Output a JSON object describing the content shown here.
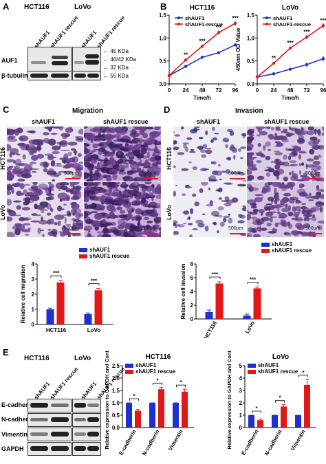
{
  "panels": {
    "A": {
      "letter": "A",
      "cell_lines": [
        "HCT116",
        "LoVo"
      ],
      "lanes": [
        "shAUF1",
        "shAUF1 rescue",
        "shAUF1",
        "shAUF1 rescue"
      ],
      "rows": [
        "AUF1",
        "β-tubulin"
      ],
      "markers": [
        "45 KDa",
        "40/42 KDa",
        "37 KDa",
        "55 KDa"
      ]
    },
    "B": {
      "letter": "B",
      "charts": [
        {
          "title": "HCT116",
          "ylabel": "450nm OD Value",
          "xlabel": "Time/h",
          "legend": [
            "shAUF1",
            "shAUF1-rescue"
          ],
          "sig": [
            "**",
            "***",
            "***",
            "***"
          ]
        },
        {
          "title": "LoVo",
          "ylabel": "450nm OD Value",
          "xlabel": "Time/h",
          "legend": [
            "shAUF1",
            "shAUF1-rescue"
          ],
          "sig": [
            "**",
            "***",
            "***",
            "***"
          ]
        }
      ]
    },
    "C": {
      "letter": "C",
      "title": "Migration",
      "cols": [
        "shAUF1",
        "shAUF1 rescue"
      ],
      "rows": [
        "HCT116",
        "LoVo"
      ],
      "scale": "500μm",
      "legend": [
        "shAUF1",
        "shAUF1 rescue"
      ],
      "ylabel": "Relative cell migration",
      "sig": [
        "***",
        "***"
      ]
    },
    "D": {
      "letter": "D",
      "title": "Invasion",
      "cols": [
        "shAUF1",
        "shAUF1 rescue"
      ],
      "rows": [
        "HCT116",
        "LoVo"
      ],
      "scale": "500μm",
      "legend": [
        "shAUF1",
        "shAUF1 rescue"
      ],
      "ylabel": "Relative cell invasion",
      "sig": [
        "***",
        "***"
      ]
    },
    "E": {
      "letter": "E",
      "cell_lines": [
        "HCT116",
        "LoVo"
      ],
      "lanes": [
        "shAUF1",
        "shAUF1 rescue",
        "shAUF1",
        "shAUF1 rescue"
      ],
      "rows": [
        "E-cadherin",
        "N-cadherin",
        "Vimentin",
        "GAPDH"
      ],
      "charts": [
        {
          "title": "HCT116",
          "legend": [
            "shAUF1",
            "shAUF1 rescue"
          ],
          "ylabel": "Relative expression to GAPDH and Control",
          "sig": [
            "*",
            "*",
            "*"
          ]
        },
        {
          "title": "LoVo",
          "legend": [
            "shAUF1",
            "shAUF1 rescue"
          ],
          "ylabel": "Relative expression to GAPDH and Control",
          "sig": [
            "*",
            "*",
            "*"
          ]
        }
      ]
    }
  },
  "colors": {
    "shAUF1": "#1f2fd0",
    "rescue": "#e01818",
    "scale_bar": "#e02020",
    "stain": "#6b3f8f"
  },
  "chart_data": [
    {
      "type": "line",
      "title": "HCT116",
      "xlabel": "Time/h",
      "ylabel": "450nm OD Value",
      "x": [
        0,
        24,
        48,
        72,
        96
      ],
      "xlim": [
        0,
        96
      ],
      "ylim": [
        0,
        1.5
      ],
      "xticks": [
        0,
        24,
        48,
        72,
        96
      ],
      "yticks": [
        0.0,
        0.5,
        1.0,
        1.5
      ],
      "series": [
        {
          "name": "shAUF1",
          "values": [
            0.18,
            0.38,
            0.58,
            0.68,
            0.85
          ]
        },
        {
          "name": "shAUF1-rescue",
          "values": [
            0.18,
            0.52,
            0.82,
            1.12,
            1.32
          ]
        }
      ]
    },
    {
      "type": "line",
      "title": "LoVo",
      "xlabel": "Time/h",
      "ylabel": "450nm OD Value",
      "x": [
        0,
        24,
        48,
        72,
        96
      ],
      "xlim": [
        0,
        96
      ],
      "ylim": [
        0,
        1.5
      ],
      "xticks": [
        0,
        24,
        48,
        72,
        96
      ],
      "yticks": [
        0.0,
        0.5,
        1.0,
        1.5
      ],
      "series": [
        {
          "name": "shAUF1",
          "values": [
            0.15,
            0.22,
            0.32,
            0.42,
            0.55
          ]
        },
        {
          "name": "shAUF1 rescue",
          "values": [
            0.15,
            0.45,
            0.78,
            1.02,
            1.27
          ]
        }
      ]
    },
    {
      "type": "bar",
      "title": "",
      "ylabel": "Relative cell migration",
      "categories": [
        "HCT116",
        "LoVo"
      ],
      "ylim": [
        0,
        4
      ],
      "yticks": [
        0,
        1,
        2,
        3,
        4
      ],
      "series": [
        {
          "name": "shAUF1",
          "values": [
            1.0,
            0.68
          ]
        },
        {
          "name": "shAUF1 rescue",
          "values": [
            2.78,
            2.26
          ]
        }
      ]
    },
    {
      "type": "bar",
      "title": "",
      "ylabel": "Relative cell invasion",
      "categories": [
        "HCT116",
        "LoVo"
      ],
      "ylim": [
        0,
        8
      ],
      "yticks": [
        0,
        2,
        4,
        6,
        8
      ],
      "series": [
        {
          "name": "shAUF1",
          "values": [
            1.0,
            0.5
          ]
        },
        {
          "name": "shAUF1 rescue",
          "values": [
            5.15,
            4.45
          ]
        }
      ]
    },
    {
      "type": "bar",
      "title": "HCT116",
      "ylabel": "Relative expression to GAPDH and Control",
      "categories": [
        "E-cadherin",
        "N-cadherin",
        "Vimentin"
      ],
      "ylim": [
        0,
        2.5
      ],
      "yticks": [
        0.0,
        0.5,
        1.0,
        1.5,
        2.0,
        2.5
      ],
      "series": [
        {
          "name": "shAUF1",
          "values": [
            1.0,
            1.0,
            1.0
          ]
        },
        {
          "name": "shAUF1 rescue",
          "values": [
            0.68,
            1.55,
            1.45
          ]
        }
      ]
    },
    {
      "type": "bar",
      "title": "LoVo",
      "ylabel": "Relative expression to GAPDH and Control",
      "categories": [
        "E-cadherin",
        "N-cadherin",
        "Vimentin"
      ],
      "ylim": [
        0,
        5
      ],
      "yticks": [
        0,
        1,
        2,
        3,
        4,
        5
      ],
      "series": [
        {
          "name": "shAUF1",
          "values": [
            1.0,
            1.0,
            1.0
          ]
        },
        {
          "name": "shAUF1 rescue",
          "values": [
            0.6,
            1.7,
            3.45
          ]
        }
      ]
    }
  ]
}
